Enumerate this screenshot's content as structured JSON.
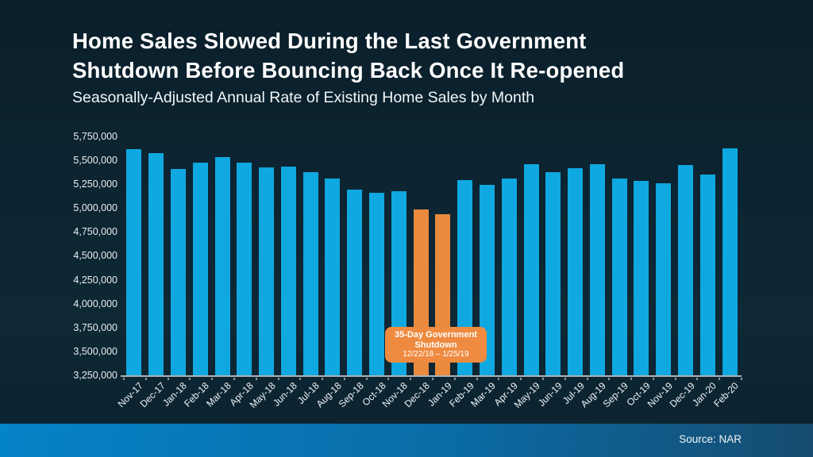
{
  "header": {
    "title_line1": "Home Sales Slowed During the Last Government",
    "title_line2": "Shutdown Before Bouncing Back Once It Re-opened",
    "subtitle": "Seasonally-Adjusted Annual Rate of Existing Home Sales by Month"
  },
  "chart_data": {
    "type": "bar",
    "title": "Home Sales Slowed During the Last Government Shutdown Before Bouncing Back Once It Re-opened",
    "subtitle": "Seasonally-Adjusted Annual Rate of Existing Home Sales by Month",
    "xlabel": "",
    "ylabel": "",
    "ylim": [
      3250000,
      5750000
    ],
    "ytick_step": 250000,
    "ytick_labels": [
      "5,750,000",
      "5,500,000",
      "5,250,000",
      "5,000,000",
      "4,750,000",
      "4,500,000",
      "4,250,000",
      "4,000,000",
      "3,750,000",
      "3,500,000",
      "3,250,000"
    ],
    "grid": "off",
    "legend": "none",
    "categories": [
      "Nov-17",
      "Dec-17",
      "Jan-18",
      "Feb-18",
      "Mar-18",
      "Apr-18",
      "May-18",
      "Jun-18",
      "Jul-18",
      "Aug-18",
      "Sep-18",
      "Oct-18",
      "Nov-18",
      "Dec-18",
      "Jan-19",
      "Feb-19",
      "Mar-19",
      "Apr-19",
      "May-19",
      "Jun-19",
      "Jul-19",
      "Aug-19",
      "Sep-19",
      "Oct-19",
      "Nov-19",
      "Dec-19",
      "Jan-20",
      "Feb-20"
    ],
    "values": [
      5620000,
      5580000,
      5410000,
      5480000,
      5540000,
      5480000,
      5430000,
      5440000,
      5380000,
      5310000,
      5200000,
      5160000,
      5180000,
      4990000,
      4940000,
      5300000,
      5250000,
      5310000,
      5460000,
      5380000,
      5420000,
      5460000,
      5310000,
      5290000,
      5260000,
      5450000,
      5350000,
      5630000
    ],
    "bar_color": "#0fa8e0",
    "highlight_color": "#ea8a3e",
    "highlight_categories": [
      "Dec-18",
      "Jan-19"
    ],
    "annotation": {
      "line1": "35-Day Government",
      "line2": "Shutdown",
      "line3": "12/22/18 – 1/25/19"
    }
  },
  "footer": {
    "source": "Source: NAR"
  }
}
